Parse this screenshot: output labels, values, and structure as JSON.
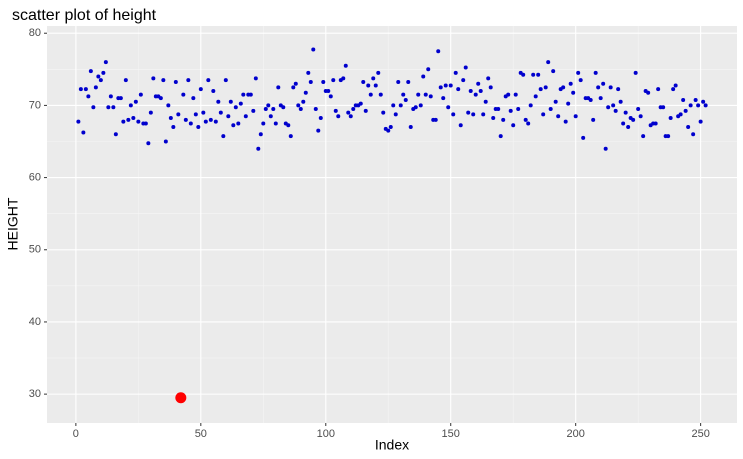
{
  "chart_data": {
    "type": "scatter",
    "title": "scatter plot of height",
    "x_label": "Index",
    "y_label": "HEIGHT",
    "x": [
      1,
      2,
      3,
      4,
      5,
      6,
      7,
      8,
      9,
      10,
      11,
      12,
      13,
      14,
      15,
      16,
      17,
      18,
      19,
      20,
      21,
      22,
      23,
      24,
      25,
      26,
      27,
      28,
      29,
      30,
      31,
      32,
      33,
      34,
      35,
      36,
      37,
      38,
      39,
      40,
      41,
      42,
      43,
      44,
      45,
      46,
      47,
      48,
      49,
      50,
      51,
      52,
      53,
      54,
      55,
      56,
      57,
      58,
      59,
      60,
      61,
      62,
      63,
      64,
      65,
      66,
      67,
      68,
      69,
      70,
      71,
      72,
      73,
      74,
      75,
      76,
      77,
      78,
      79,
      80,
      81,
      82,
      83,
      84,
      85,
      86,
      87,
      88,
      89,
      90,
      91,
      92,
      93,
      94,
      95,
      96,
      97,
      98,
      99,
      100,
      101,
      102,
      103,
      104,
      105,
      106,
      107,
      108,
      109,
      110,
      111,
      112,
      113,
      114,
      115,
      116,
      117,
      118,
      119,
      120,
      121,
      122,
      123,
      124,
      125,
      126,
      127,
      128,
      129,
      130,
      131,
      132,
      133,
      134,
      135,
      136,
      137,
      138,
      139,
      140,
      141,
      142,
      143,
      144,
      145,
      146,
      147,
      148,
      149,
      150,
      151,
      152,
      153,
      154,
      155,
      156,
      157,
      158,
      159,
      160,
      161,
      162,
      163,
      164,
      165,
      166,
      167,
      168,
      169,
      170,
      171,
      172,
      173,
      174,
      175,
      176,
      177,
      178,
      179,
      180,
      181,
      182,
      183,
      184,
      185,
      186,
      187,
      188,
      189,
      190,
      191,
      192,
      193,
      194,
      195,
      196,
      197,
      198,
      199,
      200,
      201,
      202,
      203,
      204,
      205,
      206,
      207,
      208,
      209,
      210,
      211,
      212,
      213,
      214,
      215,
      216,
      217,
      218,
      219,
      220,
      221,
      222,
      223,
      224,
      225,
      226,
      227,
      228,
      229,
      230,
      231,
      232,
      233,
      234,
      235,
      236,
      237,
      238,
      239,
      240,
      241,
      242,
      243,
      244,
      245,
      246,
      247,
      248,
      249,
      250,
      251,
      252
    ],
    "values": [
      67.75,
      72.25,
      66.25,
      72.25,
      71.25,
      74.75,
      69.75,
      72.5,
      74,
      73.5,
      74.5,
      76,
      69.75,
      71.25,
      69.75,
      66,
      71,
      71,
      67.75,
      73.5,
      68,
      70,
      68.25,
      70.5,
      67.75,
      71.5,
      67.5,
      67.5,
      64.75,
      69,
      73.75,
      71.25,
      71.25,
      71,
      73.5,
      65,
      70,
      68.25,
      67,
      73.25,
      68.75,
      29.5,
      71.5,
      68,
      73.5,
      67.5,
      71,
      68.75,
      67,
      72.25,
      69,
      67.75,
      73.5,
      68,
      72,
      67.75,
      70.5,
      69,
      65.75,
      73.5,
      68.5,
      70.5,
      67.25,
      69.75,
      67.5,
      70.25,
      71.5,
      68.5,
      71.5,
      71.5,
      69.25,
      73.75,
      64,
      66,
      67.5,
      69.5,
      70,
      68.5,
      69.5,
      67.5,
      72.5,
      70,
      69.75,
      67.5,
      67.25,
      65.75,
      72.5,
      73,
      70,
      69.5,
      70.5,
      71.75,
      74.5,
      73.25,
      77.75,
      69.5,
      66.5,
      68.25,
      73.25,
      72,
      72,
      71.25,
      73.5,
      69.25,
      68.5,
      73.5,
      73.75,
      75.5,
      69,
      68.5,
      69.5,
      70,
      70,
      70.25,
      73.25,
      69.25,
      72.75,
      71.5,
      73.75,
      72.75,
      74.5,
      71.5,
      69,
      66.75,
      66.5,
      67,
      70,
      68.75,
      73.25,
      70,
      71.5,
      70.75,
      73.25,
      67,
      69.5,
      69.75,
      71.5,
      70,
      74,
      71.5,
      75,
      71.25,
      68,
      68,
      77.5,
      72.5,
      71,
      72.75,
      69.75,
      72.75,
      68.75,
      74.5,
      72.25,
      67.25,
      73.5,
      75.25,
      69,
      72,
      68.75,
      71.5,
      73,
      72,
      68.75,
      70.5,
      73.75,
      72.5,
      68.25,
      69.5,
      69.5,
      65.75,
      68,
      71.25,
      71.5,
      69.25,
      67.25,
      71.5,
      69.5,
      74.5,
      74.25,
      68,
      67.5,
      70,
      74.25,
      71.25,
      74.25,
      72.25,
      68.75,
      72.5,
      76,
      69.5,
      74.75,
      70.5,
      68.5,
      72.25,
      72.5,
      67.75,
      70.25,
      73,
      71.75,
      68.5,
      74.5,
      73.5,
      65.5,
      71,
      71,
      70.75,
      68,
      74.5,
      72.5,
      71,
      73,
      64,
      69.75,
      72.5,
      70,
      69.25,
      72.25,
      70.5,
      67.5,
      69,
      67,
      68.25,
      68,
      74.5,
      69.5,
      68.5,
      65.75,
      72,
      71.75,
      67.25,
      67.5,
      67.5,
      72.25,
      69.75,
      69.75,
      65.75,
      65.75,
      68.25,
      72.25,
      72.75,
      68.5,
      68.75,
      70.75,
      69.25,
      67,
      70,
      66,
      70.75,
      70,
      67.75,
      70.5,
      70
    ],
    "color": "#0000CD",
    "highlight": {
      "indices": [
        41
      ],
      "color": "#FF0000"
    },
    "xlim": [
      -11.55,
      264.55
    ],
    "xticks": [
      0,
      50,
      100,
      150,
      200,
      250
    ],
    "ylim": [
      26,
      81
    ],
    "yticks": [
      30,
      40,
      50,
      60,
      70,
      80
    ],
    "grid": true
  }
}
